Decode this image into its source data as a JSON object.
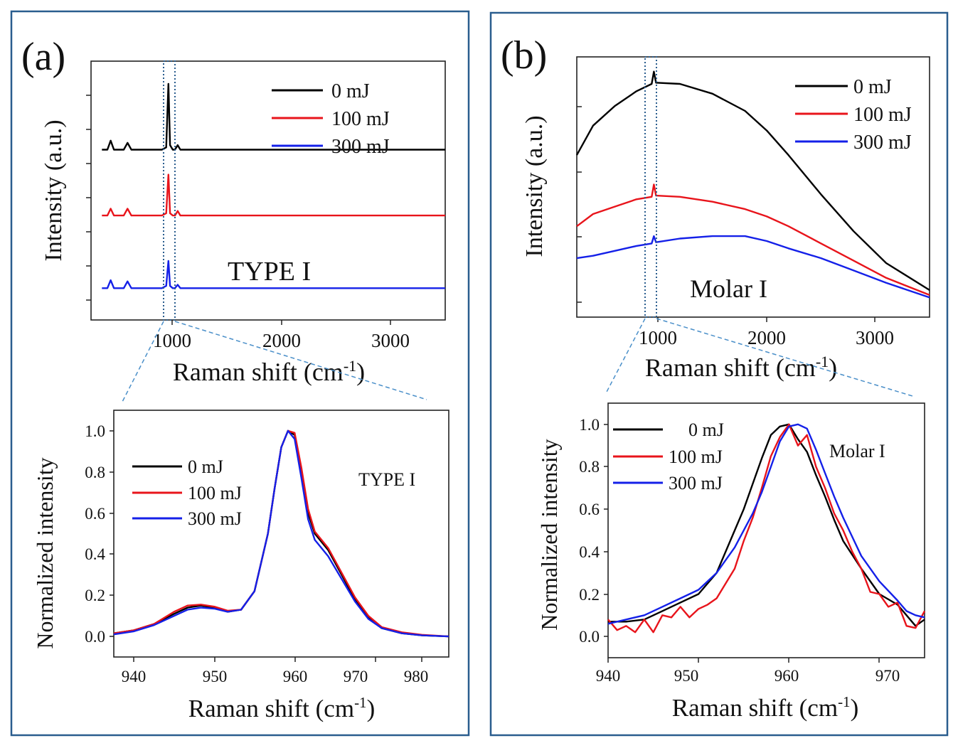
{
  "colors": {
    "black": "#000000",
    "red": "#e8141b",
    "blue": "#1420e8",
    "frame": "#2a5d8e",
    "dash": "#4a8fc9"
  },
  "panels": {
    "a": {
      "label": "(a)",
      "top": {
        "ylabel": "Intensity (a.u.)",
        "xlabel_main": "Raman shift (cm",
        "xlabel_sup": "-1",
        "xlabel_close": ")",
        "annotation": "TYPE I",
        "xlim": [
          250,
          3500
        ],
        "xticks": [
          "1000",
          "2000",
          "3000"
        ],
        "legend": [
          "0 mJ",
          "100 mJ",
          "300 mJ"
        ],
        "highlight_x": [
          960,
          1020
        ]
      },
      "inset": {
        "ylabel": "Normalized intensity",
        "xlabel_main": "Raman shift (cm",
        "xlabel_sup": "-1",
        "xlabel_close": ")",
        "annotation": "TYPE I",
        "xlim": [
          935,
          985
        ],
        "ylim": [
          -0.1,
          1.1
        ],
        "xticks": [
          "940",
          "950",
          "960",
          "970",
          "980"
        ],
        "yticks": [
          "0.0",
          "0.2",
          "0.4",
          "0.6",
          "0.8",
          "1.0"
        ],
        "legend": [
          "0 mJ",
          "100 mJ",
          "300 mJ"
        ]
      }
    },
    "b": {
      "label": "(b)",
      "top": {
        "ylabel": "Intensity (a.u.)",
        "xlabel_main": "Raman shift (cm",
        "xlabel_sup": "-1",
        "xlabel_close": ")",
        "annotation": "Molar I",
        "xlim": [
          250,
          3500
        ],
        "xticks": [
          "1000",
          "2000",
          "3000"
        ],
        "legend": [
          "0 mJ",
          "100 mJ",
          "300 mJ"
        ],
        "highlight_x": [
          900,
          960
        ]
      },
      "inset": {
        "ylabel": "Normalized intensity",
        "xlabel_main": "Raman shift (cm",
        "xlabel_sup": "-1",
        "xlabel_close": ")",
        "annotation": "Molar I",
        "xlim": [
          940,
          975
        ],
        "ylim": [
          -0.1,
          1.1
        ],
        "xticks": [
          "940",
          "950",
          "960",
          "970"
        ],
        "yticks": [
          "0.0",
          "0.2",
          "0.4",
          "0.6",
          "0.8",
          "1.0"
        ],
        "legend": [
          "0 mJ",
          "100 mJ",
          "300 mJ"
        ]
      }
    }
  },
  "chart_data": [
    {
      "id": "a-top",
      "type": "line",
      "title": "",
      "xlabel": "Raman shift (cm-1)",
      "ylabel": "Intensity (a.u.)",
      "xlim": [
        250,
        3500
      ],
      "series": [
        {
          "name": "0 mJ",
          "color": "#000000",
          "x": [
            350,
            400,
            430,
            460,
            550,
            585,
            620,
            900,
            940,
            960,
            975,
            1000,
            1020,
            1045,
            1070,
            1200,
            2000,
            3000,
            3500
          ],
          "values": [
            0.61,
            0.61,
            0.65,
            0.61,
            0.61,
            0.64,
            0.61,
            0.61,
            0.62,
            0.9,
            0.63,
            0.61,
            0.61,
            0.63,
            0.61,
            0.61,
            0.61,
            0.61,
            0.61
          ]
        },
        {
          "name": "100 mJ",
          "color": "#e8141b",
          "x": [
            350,
            400,
            430,
            460,
            550,
            585,
            620,
            900,
            940,
            960,
            975,
            1000,
            1020,
            1045,
            1070,
            1200,
            2000,
            3000,
            3500
          ],
          "values": [
            0.32,
            0.32,
            0.35,
            0.32,
            0.32,
            0.35,
            0.32,
            0.32,
            0.33,
            0.5,
            0.33,
            0.32,
            0.32,
            0.34,
            0.32,
            0.32,
            0.32,
            0.32,
            0.32
          ]
        },
        {
          "name": "300 mJ",
          "color": "#1420e8",
          "x": [
            350,
            400,
            430,
            460,
            550,
            585,
            620,
            900,
            940,
            960,
            975,
            1000,
            1020,
            1045,
            1070,
            1200,
            2000,
            3000,
            3500
          ],
          "values": [
            0.0,
            0.0,
            0.035,
            0.0,
            0.0,
            0.03,
            0.0,
            0.0,
            0.01,
            0.12,
            0.01,
            0.0,
            0.0,
            0.015,
            0.0,
            0.0,
            0.0,
            0.0,
            0.0
          ]
        }
      ]
    },
    {
      "id": "a-inset",
      "type": "line",
      "title": "",
      "xlabel": "Raman shift (cm-1)",
      "ylabel": "Normalized intensity",
      "xlim": [
        935,
        985
      ],
      "ylim": [
        -0.1,
        1.1
      ],
      "series": [
        {
          "name": "0 mJ",
          "color": "#000000",
          "x": [
            935,
            938,
            941,
            944,
            946,
            948,
            950,
            952,
            954,
            956,
            958,
            959,
            960,
            961,
            962,
            963,
            964,
            965,
            967,
            969,
            971,
            973,
            975,
            978,
            981,
            985
          ],
          "values": [
            0.015,
            0.03,
            0.06,
            0.11,
            0.14,
            0.15,
            0.14,
            0.12,
            0.13,
            0.22,
            0.5,
            0.72,
            0.92,
            1.0,
            0.98,
            0.8,
            0.6,
            0.5,
            0.42,
            0.3,
            0.18,
            0.09,
            0.04,
            0.015,
            0.005,
            0.0
          ]
        },
        {
          "name": "100 mJ",
          "color": "#e8141b",
          "x": [
            935,
            938,
            941,
            944,
            946,
            948,
            950,
            952,
            954,
            956,
            958,
            959,
            960,
            961,
            962,
            963,
            964,
            965,
            967,
            969,
            971,
            973,
            975,
            978,
            981,
            985
          ],
          "values": [
            0.015,
            0.03,
            0.06,
            0.12,
            0.15,
            0.155,
            0.145,
            0.125,
            0.13,
            0.22,
            0.5,
            0.72,
            0.92,
            1.0,
            0.99,
            0.82,
            0.62,
            0.51,
            0.43,
            0.31,
            0.19,
            0.1,
            0.045,
            0.02,
            0.008,
            0.0
          ]
        },
        {
          "name": "300 mJ",
          "color": "#1420e8",
          "x": [
            935,
            938,
            941,
            944,
            946,
            948,
            950,
            952,
            954,
            956,
            958,
            959,
            960,
            961,
            962,
            963,
            964,
            965,
            967,
            969,
            971,
            973,
            975,
            978,
            981,
            985
          ],
          "values": [
            0.01,
            0.025,
            0.055,
            0.1,
            0.13,
            0.14,
            0.135,
            0.12,
            0.13,
            0.22,
            0.5,
            0.72,
            0.92,
            1.0,
            0.96,
            0.77,
            0.57,
            0.47,
            0.39,
            0.28,
            0.17,
            0.085,
            0.04,
            0.015,
            0.005,
            0.0
          ]
        }
      ]
    },
    {
      "id": "b-top",
      "type": "line",
      "title": "",
      "xlabel": "Raman shift (cm-1)",
      "ylabel": "Intensity (a.u.)",
      "xlim": [
        250,
        3500
      ],
      "series": [
        {
          "name": "0 mJ",
          "color": "#000000",
          "x": [
            250,
            400,
            600,
            800,
            940,
            960,
            980,
            1200,
            1500,
            1800,
            2000,
            2200,
            2500,
            2800,
            3100,
            3500
          ],
          "values": [
            0.66,
            0.78,
            0.86,
            0.92,
            0.95,
            1.0,
            0.955,
            0.95,
            0.91,
            0.84,
            0.76,
            0.66,
            0.5,
            0.35,
            0.22,
            0.11
          ]
        },
        {
          "name": "100 mJ",
          "color": "#e8141b",
          "x": [
            250,
            400,
            600,
            800,
            940,
            960,
            980,
            1200,
            1500,
            1800,
            2000,
            2200,
            2500,
            2800,
            3100,
            3500
          ],
          "values": [
            0.37,
            0.42,
            0.45,
            0.48,
            0.49,
            0.54,
            0.495,
            0.49,
            0.47,
            0.44,
            0.41,
            0.37,
            0.3,
            0.23,
            0.16,
            0.09
          ]
        },
        {
          "name": "300 mJ",
          "color": "#1420e8",
          "x": [
            250,
            400,
            600,
            800,
            940,
            960,
            980,
            1200,
            1500,
            1800,
            2000,
            2200,
            2500,
            2800,
            3100,
            3500
          ],
          "values": [
            0.24,
            0.25,
            0.27,
            0.29,
            0.3,
            0.33,
            0.305,
            0.32,
            0.33,
            0.33,
            0.31,
            0.28,
            0.24,
            0.19,
            0.14,
            0.08
          ]
        }
      ]
    },
    {
      "id": "b-inset",
      "type": "line",
      "title": "",
      "xlabel": "Raman shift (cm-1)",
      "ylabel": "Normalized intensity",
      "xlim": [
        940,
        975
      ],
      "ylim": [
        -0.1,
        1.1
      ],
      "series": [
        {
          "name": "0 mJ",
          "color": "#000000",
          "x": [
            940,
            942,
            944,
            946,
            948,
            950,
            952,
            954,
            955,
            956,
            957,
            958,
            959,
            960,
            961,
            962,
            963,
            964,
            965,
            966,
            968,
            970,
            972,
            973,
            974,
            975
          ],
          "values": [
            0.07,
            0.07,
            0.08,
            0.12,
            0.16,
            0.2,
            0.3,
            0.5,
            0.6,
            0.72,
            0.84,
            0.95,
            0.99,
            1.0,
            0.93,
            0.87,
            0.76,
            0.66,
            0.55,
            0.45,
            0.32,
            0.2,
            0.15,
            0.1,
            0.05,
            0.08
          ]
        },
        {
          "name": "100 mJ",
          "color": "#e8141b",
          "x": [
            940,
            941,
            942,
            943,
            944,
            945,
            946,
            947,
            948,
            949,
            950,
            951,
            952,
            953,
            954,
            955,
            956,
            957,
            958,
            959,
            960,
            961,
            962,
            963,
            964,
            965,
            966,
            967,
            968,
            969,
            970,
            971,
            972,
            973,
            974,
            975
          ],
          "values": [
            0.08,
            0.03,
            0.05,
            0.02,
            0.08,
            0.02,
            0.1,
            0.09,
            0.14,
            0.09,
            0.13,
            0.15,
            0.18,
            0.25,
            0.32,
            0.45,
            0.56,
            0.7,
            0.85,
            0.94,
            1.0,
            0.9,
            0.95,
            0.8,
            0.7,
            0.58,
            0.5,
            0.4,
            0.32,
            0.21,
            0.2,
            0.14,
            0.16,
            0.05,
            0.04,
            0.12
          ]
        },
        {
          "name": "300 mJ",
          "color": "#1420e8",
          "x": [
            940,
            942,
            944,
            946,
            948,
            950,
            952,
            954,
            956,
            957,
            958,
            959,
            960,
            961,
            962,
            963,
            964,
            965,
            966,
            967,
            968,
            970,
            972,
            973,
            974,
            975
          ],
          "values": [
            0.06,
            0.08,
            0.1,
            0.14,
            0.18,
            0.22,
            0.3,
            0.42,
            0.58,
            0.68,
            0.8,
            0.92,
            0.99,
            1.0,
            0.98,
            0.88,
            0.77,
            0.66,
            0.56,
            0.47,
            0.38,
            0.26,
            0.17,
            0.12,
            0.1,
            0.09
          ]
        }
      ]
    }
  ]
}
